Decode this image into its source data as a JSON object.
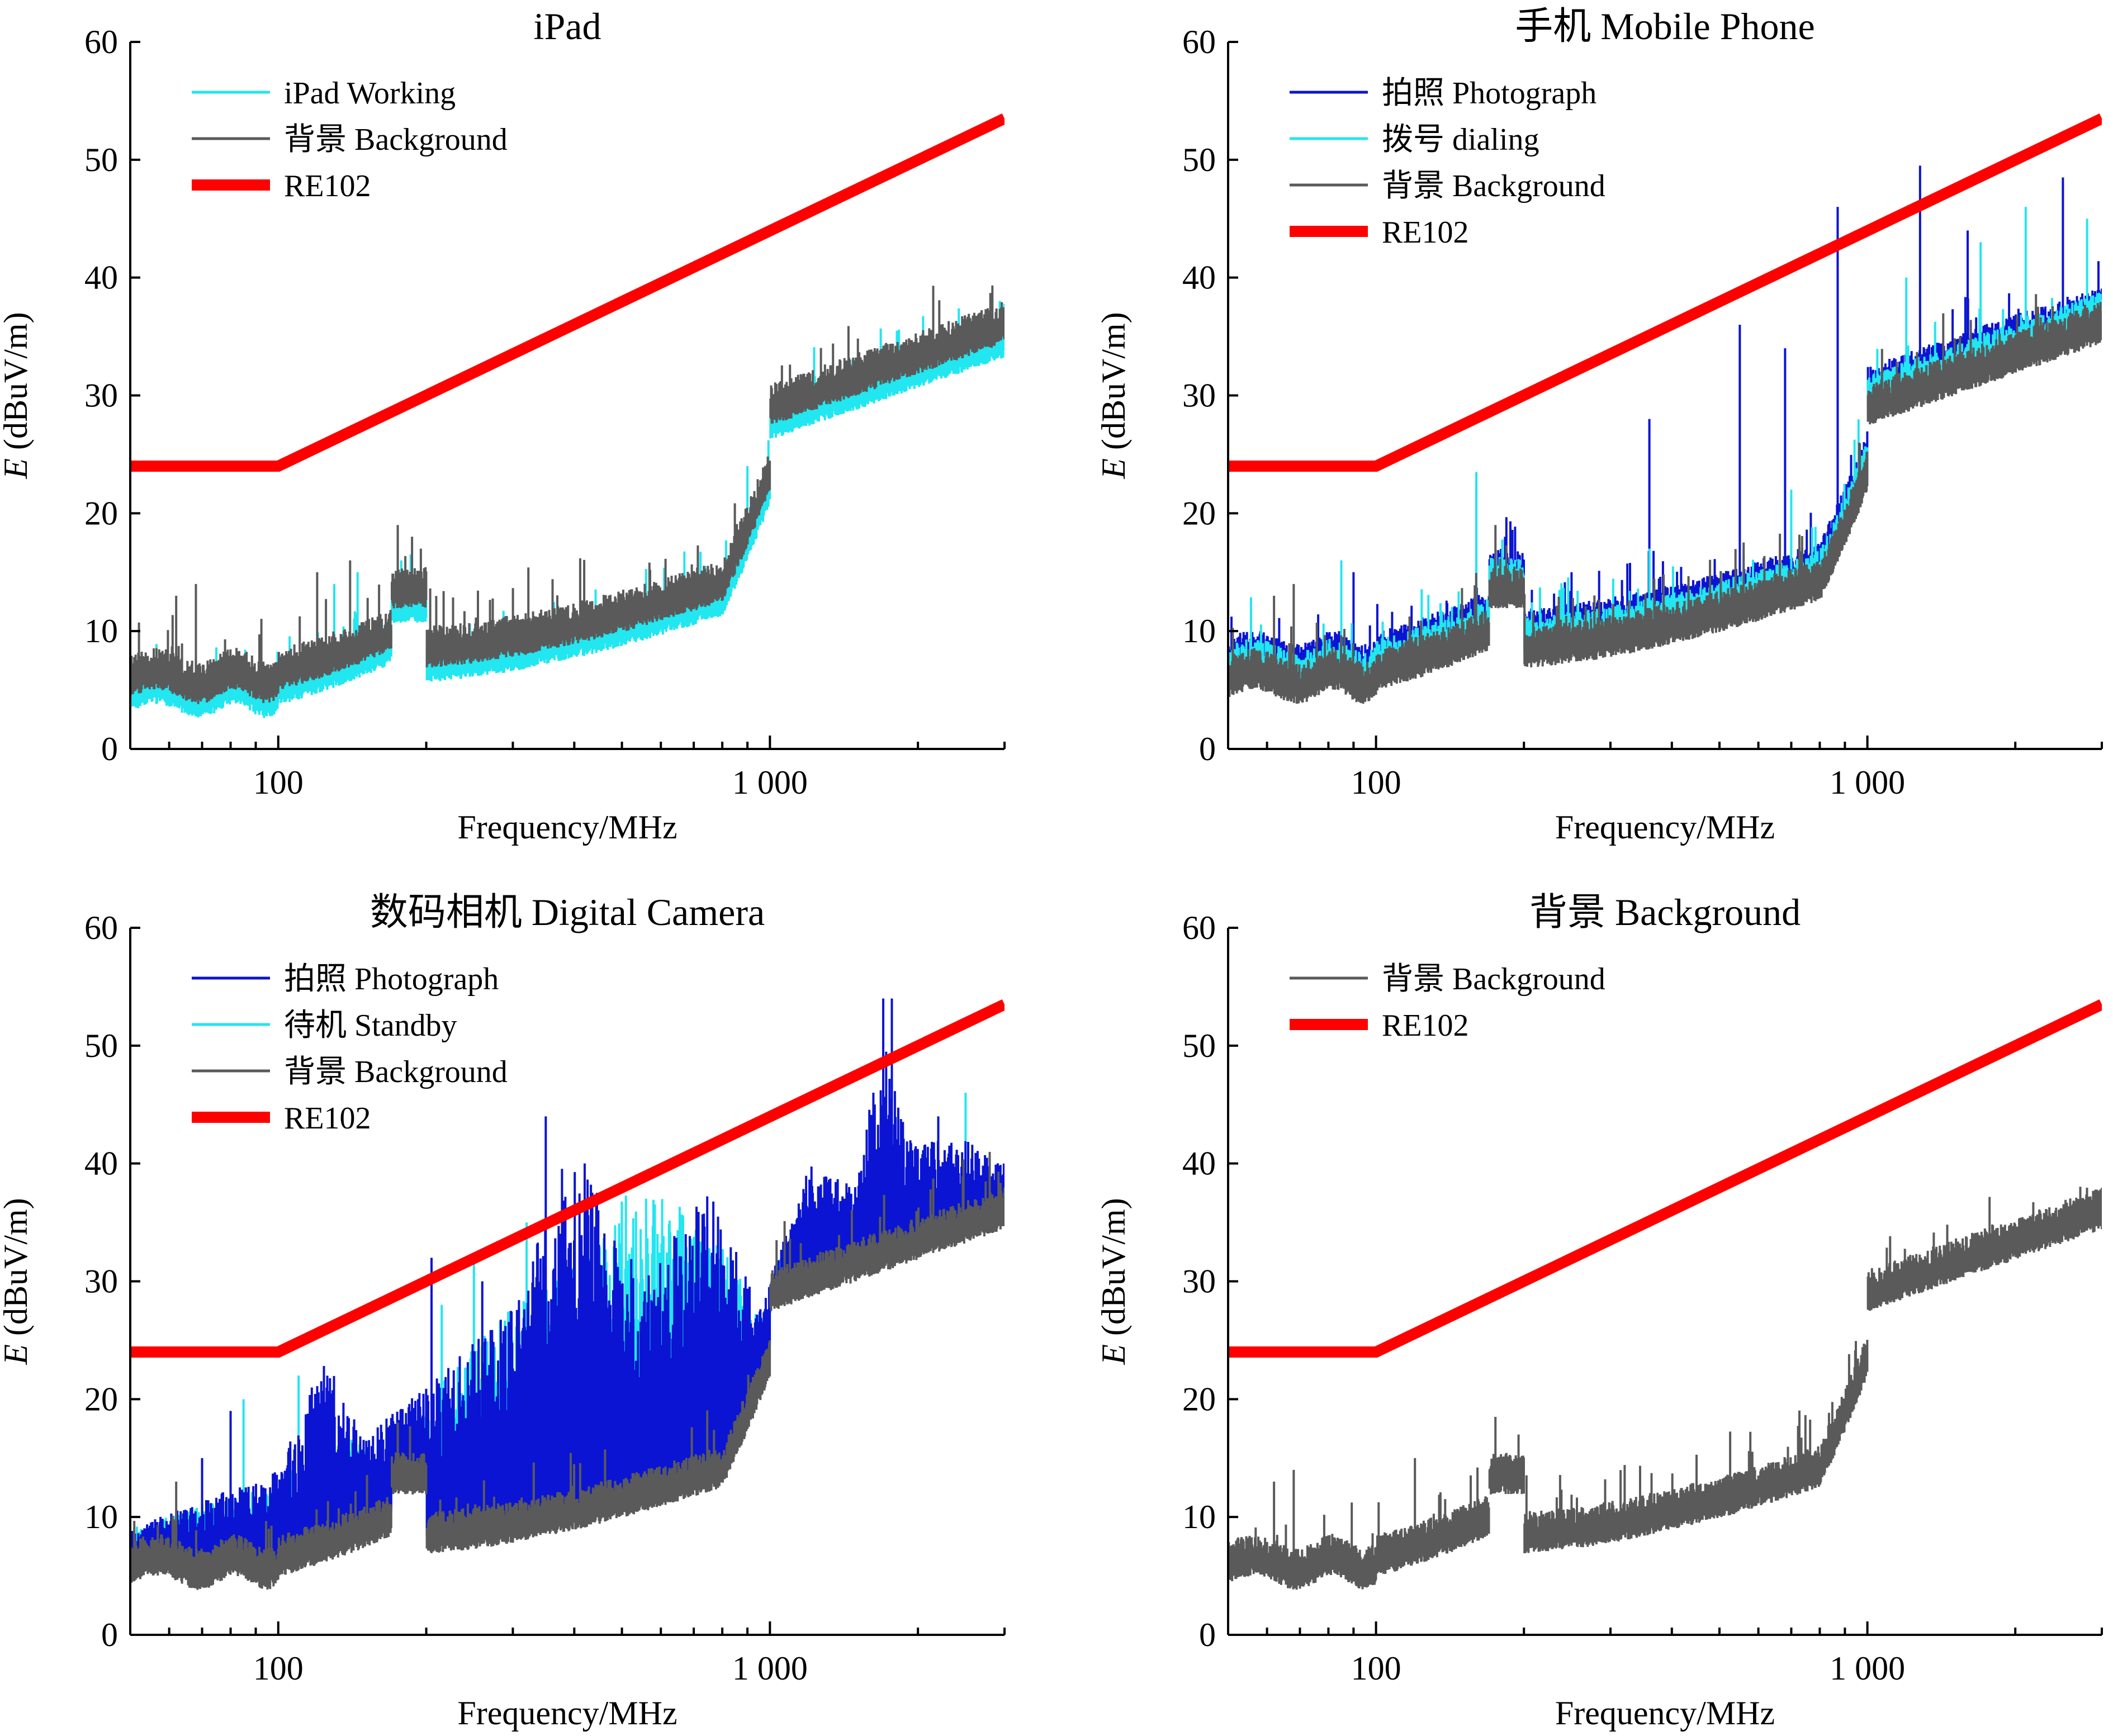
{
  "figure": {
    "colors": {
      "photograph": "#0A14D2",
      "cyan": "#22E6F0",
      "background": "#5A5A5A",
      "limit": "#FF0000"
    }
  },
  "chart_data": [
    {
      "type": "line",
      "title": "iPad",
      "xlabel": "Frequency/MHz",
      "ylabel_italic": "E",
      "ylabel_rest": " (dBuV/m)",
      "xscale": "log",
      "xlim": [
        50,
        3000
      ],
      "ylim": [
        0,
        60
      ],
      "yticks": [
        0,
        10,
        20,
        30,
        40,
        50,
        60
      ],
      "yticklabels": [
        "0",
        "10",
        "20",
        "30",
        "40",
        "50",
        "60"
      ],
      "xticks_major": [
        100,
        1000
      ],
      "xticklabels": [
        "100",
        "1 000"
      ],
      "legend_position": "top-left",
      "legend": [
        {
          "label": "iPad Working",
          "color": "#22E6F0"
        },
        {
          "label": "背景 Background",
          "color": "#5A5A5A"
        },
        {
          "label": "RE102",
          "color": "#FF0000"
        }
      ],
      "series": [
        {
          "name": "RE102",
          "kind": "limit",
          "color": "#FF0000",
          "x": [
            50,
            100,
            3000
          ],
          "y": [
            24,
            24,
            53.5
          ]
        },
        {
          "name": "iPad Working",
          "kind": "noise",
          "color": "#22E6F0",
          "offset": -1.2,
          "spurs": [
            [
              130,
              14
            ],
            [
              145,
              15
            ],
            [
              175,
              17
            ],
            [
              900,
              24
            ]
          ]
        },
        {
          "name": "背景 Background",
          "kind": "noise",
          "color": "#5A5A5A",
          "offset": 0,
          "spurs": [
            [
              62,
              13
            ],
            [
              68,
              14
            ],
            [
              120,
              15
            ],
            [
              140,
              16
            ],
            [
              175,
              19
            ],
            [
              195,
              17
            ]
          ]
        }
      ]
    },
    {
      "type": "line",
      "title": "手机 Mobile Phone",
      "xlabel": "Frequency/MHz",
      "ylabel_italic": "E",
      "ylabel_rest": " (dBuV/m)",
      "xscale": "log",
      "xlim": [
        50,
        3000
      ],
      "ylim": [
        0,
        60
      ],
      "yticks": [
        0,
        10,
        20,
        30,
        40,
        50,
        60
      ],
      "yticklabels": [
        "0",
        "10",
        "20",
        "30",
        "40",
        "50",
        "60"
      ],
      "xticks_major": [
        100,
        1000
      ],
      "xticklabels": [
        "100",
        "1 000"
      ],
      "legend_position": "top-left",
      "legend": [
        {
          "label": "拍照 Photograph",
          "color": "#0A14D2"
        },
        {
          "label": "拨号 dialing",
          "color": "#22E6F0"
        },
        {
          "label": "背景 Background",
          "color": "#5A5A5A"
        },
        {
          "label": "RE102",
          "color": "#FF0000"
        }
      ],
      "series": [
        {
          "name": "RE102",
          "kind": "limit",
          "color": "#FF0000",
          "x": [
            50,
            100,
            3000
          ],
          "y": [
            24,
            24,
            53.5
          ]
        },
        {
          "name": "拍照 Photograph",
          "kind": "noise",
          "color": "#0A14D2",
          "offset": 1.5,
          "spurs": [
            [
              90,
              15
            ],
            [
              160,
              22
            ],
            [
              250,
              15
            ],
            [
              360,
              28
            ],
            [
              550,
              36
            ],
            [
              680,
              34
            ],
            [
              870,
              46
            ],
            [
              1280,
              49.5
            ],
            [
              1600,
              44
            ],
            [
              2500,
              48.5
            ]
          ]
        },
        {
          "name": "拨号 dialing",
          "kind": "noise",
          "color": "#22E6F0",
          "offset": 0.8,
          "spurs": [
            [
              85,
              16
            ],
            [
              160,
              23.5
            ],
            [
              360,
              17
            ],
            [
              700,
              22
            ],
            [
              1200,
              40
            ],
            [
              1700,
              43
            ],
            [
              2100,
              46
            ],
            [
              2800,
              45
            ]
          ]
        },
        {
          "name": "背景 Background",
          "kind": "noise",
          "color": "#5A5A5A",
          "offset": 0,
          "spurs": [
            [
              62,
              13
            ],
            [
              68,
              14
            ],
            [
              175,
              19
            ]
          ]
        }
      ]
    },
    {
      "type": "line",
      "title": "数码相机 Digital Camera",
      "xlabel": "Frequency/MHz",
      "ylabel_italic": "E",
      "ylabel_rest": " (dBuV/m)",
      "xscale": "log",
      "xlim": [
        50,
        3000
      ],
      "ylim": [
        0,
        60
      ],
      "yticks": [
        0,
        10,
        20,
        30,
        40,
        50,
        60
      ],
      "yticklabels": [
        "0",
        "10",
        "20",
        "30",
        "40",
        "50",
        "60"
      ],
      "xticks_major": [
        100,
        1000
      ],
      "xticklabels": [
        "100",
        "1 000"
      ],
      "legend_position": "top-left",
      "legend": [
        {
          "label": "拍照 Photograph",
          "color": "#0A14D2"
        },
        {
          "label": "待机 Standby",
          "color": "#22E6F0"
        },
        {
          "label": "背景 Background",
          "color": "#5A5A5A"
        },
        {
          "label": "RE102",
          "color": "#FF0000"
        }
      ],
      "series": [
        {
          "name": "RE102",
          "kind": "limit",
          "color": "#FF0000",
          "x": [
            50,
            100,
            3000
          ],
          "y": [
            24,
            24,
            53.5
          ]
        },
        {
          "name": "待机 Standby",
          "kind": "band",
          "color": "#22E6F0",
          "upper": [
            [
              50,
              9
            ],
            [
              100,
              13
            ],
            [
              130,
              18
            ],
            [
              170,
              14
            ],
            [
              200,
              20
            ],
            [
              300,
              28
            ],
            [
              400,
              32
            ],
            [
              520,
              38
            ],
            [
              700,
              36
            ],
            [
              900,
              30
            ],
            [
              1000,
              26
            ],
            [
              1050,
              33
            ],
            [
              1500,
              32
            ],
            [
              2000,
              34
            ],
            [
              3000,
              37
            ]
          ],
          "spurs": [
            [
              85,
              20
            ],
            [
              110,
              22
            ],
            [
              215,
              28
            ],
            [
              250,
              32
            ],
            [
              320,
              35
            ],
            [
              560,
              37
            ],
            [
              1700,
              44
            ],
            [
              2500,
              46
            ]
          ]
        },
        {
          "name": "拍照 Photograph",
          "kind": "band",
          "color": "#0A14D2",
          "upper": [
            [
              50,
              9
            ],
            [
              100,
              14
            ],
            [
              125,
              24
            ],
            [
              150,
              17
            ],
            [
              200,
              21
            ],
            [
              300,
              28
            ],
            [
              380,
              40
            ],
            [
              450,
              38
            ],
            [
              550,
              30
            ],
            [
              750,
              38
            ],
            [
              950,
              28
            ],
            [
              1000,
              30
            ],
            [
              1200,
              40
            ],
            [
              1500,
              38
            ],
            [
              1700,
              52
            ],
            [
              1900,
              42
            ],
            [
              2500,
              42
            ],
            [
              3000,
              40
            ]
          ],
          "spurs": [
            [
              70,
              15
            ],
            [
              80,
              19
            ],
            [
              205,
              32
            ],
            [
              260,
              30
            ],
            [
              350,
              44
            ],
            [
              420,
              40
            ],
            [
              1700,
              54
            ],
            [
              1770,
              54
            ],
            [
              2200,
              44
            ]
          ]
        },
        {
          "name": "背景 Background",
          "kind": "noise",
          "color": "#5A5A5A",
          "offset": 0,
          "spurs": [
            [
              62,
              13
            ],
            [
              175,
              18
            ]
          ]
        }
      ]
    },
    {
      "type": "line",
      "title": "背景 Background",
      "xlabel": "Frequency/MHz",
      "ylabel_italic": "E",
      "ylabel_rest": " (dBuV/m)",
      "xscale": "log",
      "xlim": [
        50,
        3000
      ],
      "ylim": [
        0,
        60
      ],
      "yticks": [
        0,
        10,
        20,
        30,
        40,
        50,
        60
      ],
      "yticklabels": [
        "0",
        "10",
        "20",
        "30",
        "40",
        "50",
        "60"
      ],
      "xticks_major": [
        100,
        1000
      ],
      "xticklabels": [
        "100",
        "1 000"
      ],
      "legend_position": "top-left",
      "legend": [
        {
          "label": "背景 Background",
          "color": "#5A5A5A"
        },
        {
          "label": "RE102",
          "color": "#FF0000"
        }
      ],
      "series": [
        {
          "name": "RE102",
          "kind": "limit",
          "color": "#FF0000",
          "x": [
            50,
            100,
            3000
          ],
          "y": [
            24,
            24,
            53.5
          ]
        },
        {
          "name": "背景 Background",
          "kind": "noise",
          "color": "#5A5A5A",
          "offset": 0,
          "spurs": [
            [
              62,
              13
            ],
            [
              68,
              14
            ],
            [
              120,
              15
            ],
            [
              175,
              18.5
            ],
            [
              195,
              17
            ]
          ]
        }
      ]
    }
  ]
}
